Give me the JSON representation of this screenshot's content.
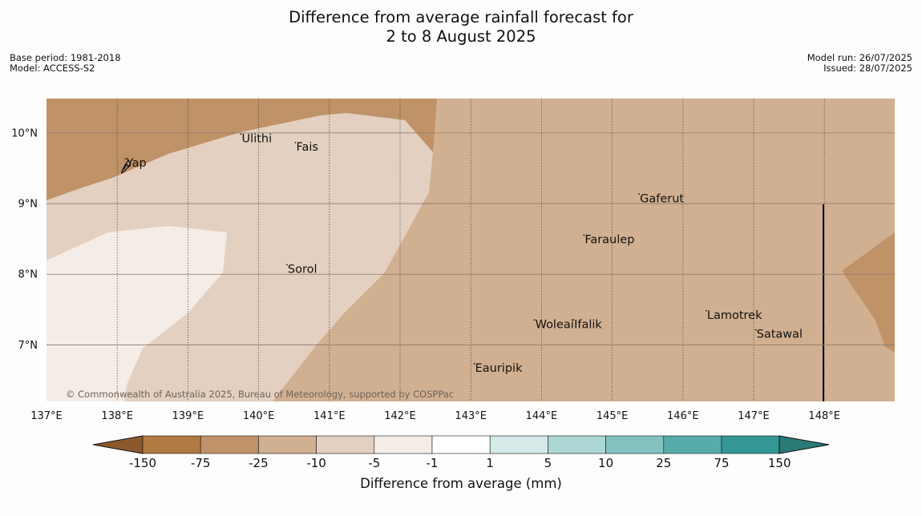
{
  "title": {
    "line1": "Difference from average rainfall forecast for",
    "line2": "2 to 8 August 2025"
  },
  "meta_left": {
    "base_period": "Base period: 1981-2018",
    "model": "Model: ACCESS-S2"
  },
  "meta_right": {
    "model_run": "Model run: 26/07/2025",
    "issued": "Issued: 28/07/2025"
  },
  "map": {
    "lon_range": [
      137,
      149
    ],
    "lat_range": [
      6.2,
      10.5
    ],
    "lon_ticks": [
      "137°E",
      "138°E",
      "139°E",
      "140°E",
      "141°E",
      "142°E",
      "143°E",
      "144°E",
      "145°E",
      "146°E",
      "147°E",
      "148°E"
    ],
    "lat_ticks": [
      "10°N",
      "9°N",
      "8°N",
      "7°N"
    ],
    "gridlines": true,
    "background_category": "-25 to -10",
    "places": [
      {
        "name": "Ulithi",
        "lon": 139.75,
        "lat": 9.87
      },
      {
        "name": "Fais",
        "lon": 140.52,
        "lat": 9.75
      },
      {
        "name": "Yap",
        "lon": 138.12,
        "lat": 9.52
      },
      {
        "name": "Gaferut",
        "lon": 145.38,
        "lat": 9.02
      },
      {
        "name": "Faraulep",
        "lon": 144.6,
        "lat": 8.44
      },
      {
        "name": "Sorol",
        "lon": 140.4,
        "lat": 8.02
      },
      {
        "name": "Lamotrek",
        "lon": 146.33,
        "lat": 7.37
      },
      {
        "name": "Woleai",
        "lon": 143.9,
        "lat": 7.24
      },
      {
        "name": "Ifalik",
        "lon": 144.45,
        "lat": 7.24
      },
      {
        "name": "Satawal",
        "lon": 147.03,
        "lat": 7.1
      },
      {
        "name": "Eauripik",
        "lon": 143.05,
        "lat": 6.62
      }
    ],
    "copyright": "© Commonwealth of Australia 2025, Bureau of Meteorology, supported by COSPPac"
  },
  "colorbar": {
    "label": "Difference from average (mm)",
    "ticks": [
      "-150",
      "-75",
      "-25",
      "-10",
      "-5",
      "-1",
      "1",
      "5",
      "10",
      "25",
      "75",
      "150"
    ],
    "colors": [
      "#8b5a2b",
      "#b07a42",
      "#c09268",
      "#d1b091",
      "#e3d0c0",
      "#f4ece6",
      "#ffffff",
      "#d5eae8",
      "#acd7d5",
      "#83c2c0",
      "#57acab",
      "#339795",
      "#2a7a78"
    ]
  }
}
